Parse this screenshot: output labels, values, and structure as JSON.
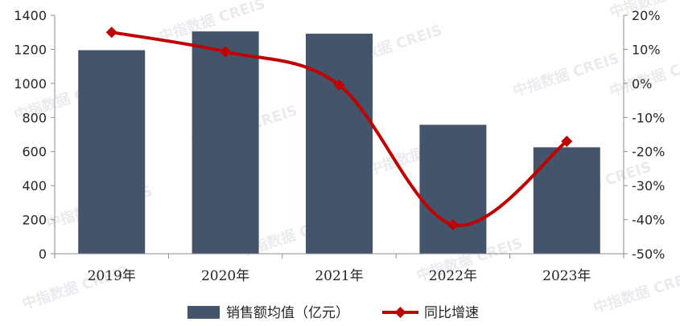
{
  "chart_data": {
    "type": "bar+line",
    "categories": [
      "2019年",
      "2020年",
      "2021年",
      "2022年",
      "2023年"
    ],
    "series": [
      {
        "name": "销售额均值（亿元）",
        "type": "bar",
        "axis": "left",
        "color": "#44546a",
        "values": [
          1195,
          1305,
          1292,
          757,
          625
        ]
      },
      {
        "name": "同比增速",
        "type": "line",
        "axis": "right",
        "color": "#c00000",
        "marker": "diamond",
        "smooth": true,
        "values": [
          15,
          9.3,
          -0.5,
          -41.5,
          -17
        ]
      }
    ],
    "y_left": {
      "min": 0,
      "max": 1400,
      "step": 200,
      "tick_labels": [
        "0",
        "200",
        "400",
        "600",
        "800",
        "1000",
        "1200",
        "1400"
      ]
    },
    "y_right": {
      "min": -50,
      "max": 20,
      "step": 10,
      "tick_labels": [
        "-50%",
        "-40%",
        "-30%",
        "-20%",
        "-10%",
        "0%",
        "10%",
        "20%"
      ]
    },
    "grid": false,
    "legend_position": "bottom",
    "watermark": "中指数据 CREIS"
  }
}
